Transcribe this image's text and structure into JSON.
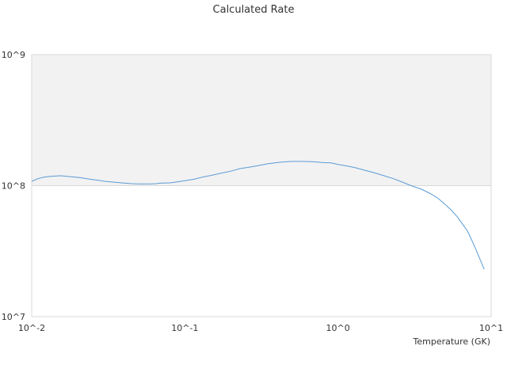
{
  "chart_data": {
    "type": "line",
    "title": "Calculated Rate",
    "xlabel": "Temperature (GK)",
    "ylabel": "",
    "x_scale": "log",
    "y_scale": "log",
    "xlim": [
      0.01,
      10
    ],
    "ylim": [
      10000000,
      1000000000
    ],
    "x_ticks": [
      {
        "value": 0.01,
        "label": "10^-2"
      },
      {
        "value": 0.1,
        "label": "10^-1"
      },
      {
        "value": 1,
        "label": "10^0"
      },
      {
        "value": 10,
        "label": "10^1"
      }
    ],
    "y_ticks": [
      {
        "value": 10000000,
        "label": "10^7"
      },
      {
        "value": 100000000,
        "label": "10^8"
      },
      {
        "value": 1000000000,
        "label": "10^9"
      }
    ],
    "band": {
      "from": 100000000,
      "to": 1000000000,
      "color": "#f2f2f2"
    },
    "series": [
      {
        "name": "",
        "color": "#5b9bd5",
        "x": [
          0.01,
          0.011,
          0.012,
          0.0135,
          0.0155,
          0.018,
          0.021,
          0.024,
          0.027,
          0.03,
          0.035,
          0.04,
          0.045,
          0.05,
          0.055,
          0.06,
          0.065,
          0.07,
          0.08,
          0.09,
          0.1,
          0.115,
          0.13,
          0.15,
          0.17,
          0.2,
          0.23,
          0.26,
          0.3,
          0.35,
          0.4,
          0.45,
          0.5,
          0.6,
          0.7,
          0.8,
          0.9,
          1.0,
          1.15,
          1.3,
          1.5,
          1.7,
          2.0,
          2.3,
          2.6,
          3.0,
          3.5,
          4.0,
          4.5,
          5.0,
          5.5,
          6.0,
          6.5,
          7.0,
          7.5,
          8.0,
          8.5,
          9.0
        ],
        "y": [
          108000000,
          113000000,
          116000000,
          118000000,
          119000000,
          117000000,
          115000000,
          112000000,
          110000000,
          108000000,
          106000000,
          104500000,
          103500000,
          103000000,
          103000000,
          103000000,
          103500000,
          104500000,
          105000000,
          107000000,
          109000000,
          112000000,
          116000000,
          120000000,
          124000000,
          129000000,
          135000000,
          138000000,
          142000000,
          147000000,
          150000000,
          152000000,
          153000000,
          153000000,
          152000000,
          150000000,
          149000000,
          145000000,
          141000000,
          137000000,
          131000000,
          126000000,
          119000000,
          113000000,
          107000000,
          100000000,
          94000000,
          87000000,
          80000000,
          72000000,
          65000000,
          58000000,
          51000000,
          45000000,
          38000000,
          32000000,
          27000000,
          23000000
        ]
      }
    ]
  }
}
